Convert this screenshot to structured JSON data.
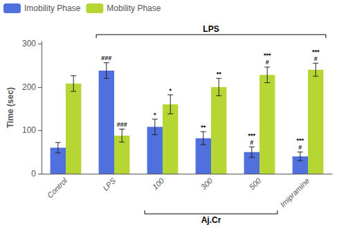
{
  "chart_data": {
    "type": "bar",
    "categories": [
      "Control",
      "LPS",
      "100",
      "300",
      "500",
      "Imipramine"
    ],
    "series": [
      {
        "name": "Imobility Phase",
        "values": [
          60,
          238,
          108,
          82,
          50,
          40
        ],
        "errors": [
          12,
          18,
          18,
          15,
          12,
          10
        ],
        "hash": [
          null,
          "###",
          null,
          null,
          "#",
          "#"
        ],
        "stars": [
          null,
          null,
          "*",
          "**",
          "***",
          "***"
        ]
      },
      {
        "name": "Mobility Phase",
        "values": [
          208,
          88,
          160,
          200,
          228,
          240
        ],
        "errors": [
          18,
          15,
          22,
          20,
          18,
          15
        ],
        "hash": [
          null,
          "###",
          null,
          null,
          "#",
          "#"
        ],
        "stars": [
          null,
          null,
          "*",
          "**",
          "***",
          "***"
        ]
      }
    ],
    "ylabel": "Time (sec)",
    "ylim": [
      0,
      305
    ],
    "yticks": [
      0,
      100,
      200,
      300
    ],
    "grid": false,
    "legend": "upper left",
    "annotations": [
      {
        "text": "LPS",
        "from": "LPS",
        "to": "Imipramine",
        "position": "top"
      },
      {
        "text": "Aj.Cr",
        "from": "100",
        "to": "500",
        "position": "bottom"
      }
    ]
  }
}
